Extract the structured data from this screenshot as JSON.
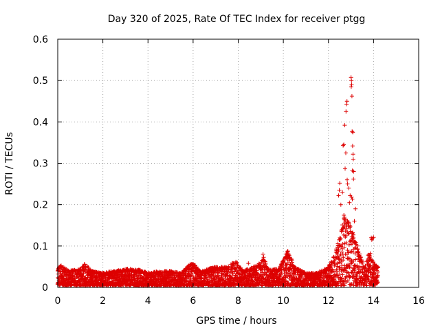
{
  "chart_data": {
    "type": "scatter",
    "title": "Day 320 of 2025, Rate Of TEC Index for receiver ptgg",
    "xlabel": "GPS time / hours",
    "ylabel": "ROTI / TECUs",
    "xlim": [
      0,
      16
    ],
    "ylim": [
      0,
      0.6
    ],
    "x_ticks": [
      0,
      2,
      4,
      6,
      8,
      10,
      12,
      14,
      16
    ],
    "y_ticks": [
      0,
      0.1,
      0.2,
      0.3,
      0.4,
      0.5,
      0.6
    ],
    "grid": true,
    "marker": "+",
    "colors": {
      "series": "#dd0000",
      "axis": "#000000",
      "grid": "#a0a0a0"
    },
    "series": [
      {
        "name": "ROTI",
        "baseline_envelope": [
          [
            0.0,
            0.045
          ],
          [
            0.1,
            0.055
          ],
          [
            0.5,
            0.04
          ],
          [
            1.0,
            0.045
          ],
          [
            1.2,
            0.058
          ],
          [
            1.5,
            0.04
          ],
          [
            2.0,
            0.035
          ],
          [
            2.5,
            0.04
          ],
          [
            3.0,
            0.045
          ],
          [
            3.5,
            0.045
          ],
          [
            4.0,
            0.035
          ],
          [
            4.5,
            0.04
          ],
          [
            5.0,
            0.04
          ],
          [
            5.5,
            0.035
          ],
          [
            5.8,
            0.055
          ],
          [
            6.0,
            0.06
          ],
          [
            6.3,
            0.04
          ],
          [
            7.0,
            0.05
          ],
          [
            7.5,
            0.05
          ],
          [
            7.9,
            0.065
          ],
          [
            8.2,
            0.04
          ],
          [
            8.5,
            0.045
          ],
          [
            9.0,
            0.06
          ],
          [
            9.1,
            0.08
          ],
          [
            9.3,
            0.045
          ],
          [
            9.5,
            0.045
          ],
          [
            9.8,
            0.045
          ],
          [
            10.2,
            0.09
          ],
          [
            10.5,
            0.05
          ],
          [
            11.0,
            0.035
          ],
          [
            11.5,
            0.035
          ],
          [
            12.0,
            0.05
          ],
          [
            12.2,
            0.07
          ],
          [
            12.5,
            0.12
          ],
          [
            12.7,
            0.18
          ],
          [
            12.9,
            0.16
          ],
          [
            13.1,
            0.13
          ],
          [
            13.4,
            0.08
          ],
          [
            13.6,
            0.05
          ],
          [
            13.8,
            0.08
          ],
          [
            14.0,
            0.06
          ],
          [
            14.2,
            0.05
          ]
        ],
        "outliers": [
          {
            "x": 9.1,
            "y": 0.08
          },
          {
            "x": 10.2,
            "y": 0.088
          },
          {
            "x": 8.45,
            "y": 0.058
          },
          {
            "x": 12.45,
            "y": 0.222
          },
          {
            "x": 12.48,
            "y": 0.235
          },
          {
            "x": 12.5,
            "y": 0.252
          },
          {
            "x": 12.55,
            "y": 0.2
          },
          {
            "x": 12.62,
            "y": 0.23
          },
          {
            "x": 12.65,
            "y": 0.343
          },
          {
            "x": 12.68,
            "y": 0.345
          },
          {
            "x": 12.72,
            "y": 0.392
          },
          {
            "x": 12.74,
            "y": 0.287
          },
          {
            "x": 12.78,
            "y": 0.425
          },
          {
            "x": 12.8,
            "y": 0.443
          },
          {
            "x": 12.82,
            "y": 0.45
          },
          {
            "x": 12.77,
            "y": 0.325
          },
          {
            "x": 12.85,
            "y": 0.25
          },
          {
            "x": 12.83,
            "y": 0.26
          },
          {
            "x": 12.9,
            "y": 0.24
          },
          {
            "x": 12.93,
            "y": 0.205
          },
          {
            "x": 12.96,
            "y": 0.222
          },
          {
            "x": 13.0,
            "y": 0.508
          },
          {
            "x": 13.02,
            "y": 0.5
          },
          {
            "x": 13.03,
            "y": 0.49
          },
          {
            "x": 13.01,
            "y": 0.485
          },
          {
            "x": 13.04,
            "y": 0.462
          },
          {
            "x": 13.05,
            "y": 0.377
          },
          {
            "x": 13.08,
            "y": 0.375
          },
          {
            "x": 13.07,
            "y": 0.342
          },
          {
            "x": 13.09,
            "y": 0.322
          },
          {
            "x": 13.1,
            "y": 0.31
          },
          {
            "x": 13.06,
            "y": 0.282
          },
          {
            "x": 13.12,
            "y": 0.28
          },
          {
            "x": 13.11,
            "y": 0.262
          },
          {
            "x": 13.03,
            "y": 0.218
          },
          {
            "x": 13.06,
            "y": 0.213
          },
          {
            "x": 13.2,
            "y": 0.19
          },
          {
            "x": 13.15,
            "y": 0.16
          },
          {
            "x": 13.3,
            "y": 0.1
          },
          {
            "x": 13.9,
            "y": 0.12
          },
          {
            "x": 13.95,
            "y": 0.118
          },
          {
            "x": 13.92,
            "y": 0.115
          },
          {
            "x": 14.0,
            "y": 0.121
          },
          {
            "x": 13.75,
            "y": 0.078
          },
          {
            "x": 13.85,
            "y": 0.082
          }
        ]
      }
    ]
  }
}
